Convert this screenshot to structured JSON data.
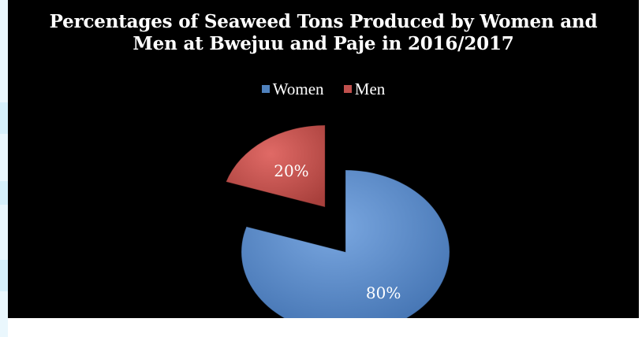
{
  "chart_data": {
    "type": "pie",
    "title": "Percentages of Seaweed Tons Produced by Women and\nMen at Bwejuu and Paje in 2016/2017",
    "legend_position": "top",
    "categories": [
      "Women",
      "Men"
    ],
    "values": [
      80,
      20
    ],
    "data_labels": [
      "80%",
      "20%"
    ],
    "colors": [
      "#4f81bd",
      "#c0504d"
    ],
    "exploded": true
  }
}
